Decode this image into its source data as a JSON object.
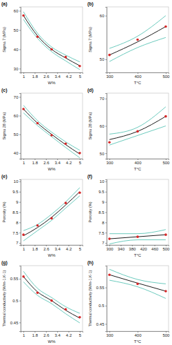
{
  "chart_data": [
    {
      "type": "line",
      "title": "(a)",
      "xlabel": "W%",
      "ylabel": "Sigma 7 (MPa)",
      "x": [
        1,
        2,
        3,
        4,
        5
      ],
      "xlim": [
        0.8,
        5.2
      ],
      "xticks": [
        1,
        1.8,
        2.6,
        3.4,
        4.2,
        5
      ],
      "ylim": [
        28,
        62
      ],
      "yticks": [
        30,
        40,
        50,
        60
      ],
      "series": [
        {
          "type": "line",
          "color": "#2bb3a0",
          "line_style": "solid",
          "values": [
            59.5,
            48.3,
            41.2,
            37,
            33.5
          ]
        },
        {
          "type": "line",
          "color": "#2bb3a0",
          "line_style": "solid",
          "values": [
            55.5,
            45.7,
            38.8,
            34,
            29.5
          ]
        },
        {
          "type": "line",
          "color": "#000000",
          "line_style": "solid",
          "values": [
            57.5,
            47,
            40,
            35.5,
            31.5
          ]
        },
        {
          "type": "scatter",
          "color": "#d62728",
          "marker": "circle",
          "values": [
            57.5,
            46.5,
            40,
            36,
            31.3
          ]
        }
      ]
    },
    {
      "type": "line",
      "title": "(b)",
      "xlabel": "T°C",
      "ylabel": "Sigma 7 (MPa)",
      "x": [
        300,
        400,
        500
      ],
      "xlim": [
        290,
        510
      ],
      "xticks": [
        300,
        400,
        500
      ],
      "ylim": [
        47,
        62
      ],
      "yticks": [
        50,
        60
      ],
      "series": [
        {
          "type": "line",
          "color": "#2bb3a0",
          "line_style": "solid",
          "values": [
            52.5,
            55.3,
            60
          ]
        },
        {
          "type": "line",
          "color": "#2bb3a0",
          "line_style": "solid",
          "values": [
            49.5,
            52.7,
            55
          ]
        },
        {
          "type": "line",
          "color": "#000000",
          "line_style": "solid",
          "values": [
            51,
            54,
            57.5
          ]
        },
        {
          "type": "scatter",
          "color": "#d62728",
          "marker": "circle",
          "values": [
            51,
            54.5,
            57.5
          ]
        }
      ]
    },
    {
      "type": "line",
      "title": "(c)",
      "xlabel": "W%",
      "ylabel": "Sigma 28 (MPa)",
      "x": [
        1,
        2,
        3,
        4,
        5
      ],
      "xlim": [
        0.8,
        5.2
      ],
      "xticks": [
        1,
        1.8,
        2.6,
        3.4,
        4.2,
        5
      ],
      "ylim": [
        37,
        72
      ],
      "yticks": [
        40,
        50,
        60,
        70
      ],
      "series": [
        {
          "type": "line",
          "color": "#2bb3a0",
          "line_style": "solid",
          "values": [
            65.5,
            57.3,
            51.2,
            46,
            41.5
          ]
        },
        {
          "type": "line",
          "color": "#2bb3a0",
          "line_style": "solid",
          "values": [
            61.5,
            54.7,
            48.8,
            43,
            37.5
          ]
        },
        {
          "type": "line",
          "color": "#000000",
          "line_style": "solid",
          "values": [
            63.5,
            56,
            50,
            44.5,
            39.5
          ]
        },
        {
          "type": "scatter",
          "color": "#d62728",
          "marker": "circle",
          "values": [
            63.5,
            56,
            49.5,
            45,
            40
          ]
        }
      ]
    },
    {
      "type": "line",
      "title": "(d)",
      "xlabel": "T°C",
      "ylabel": "Sigma 28 (MPa)",
      "x": [
        300,
        400,
        500
      ],
      "xlim": [
        290,
        510
      ],
      "xticks": [
        300,
        400,
        500
      ],
      "ylim": [
        48,
        72
      ],
      "yticks": [
        50,
        60,
        70
      ],
      "series": [
        {
          "type": "line",
          "color": "#2bb3a0",
          "line_style": "solid",
          "values": [
            57,
            59.5,
            67
          ]
        },
        {
          "type": "line",
          "color": "#2bb3a0",
          "line_style": "solid",
          "values": [
            53,
            56.5,
            60
          ]
        },
        {
          "type": "line",
          "color": "#000000",
          "line_style": "solid",
          "values": [
            55,
            58,
            63.5
          ]
        },
        {
          "type": "scatter",
          "color": "#d62728",
          "marker": "circle",
          "values": [
            54,
            58,
            63.5
          ]
        }
      ]
    },
    {
      "type": "line",
      "title": "(e)",
      "xlabel": "W%",
      "ylabel": "Porosity (%)",
      "x": [
        1,
        2,
        3,
        4,
        5
      ],
      "xlim": [
        0.8,
        5.2
      ],
      "xticks": [
        1,
        1.8,
        2.6,
        3.4,
        4.2,
        5
      ],
      "ylim": [
        6.9,
        10.1
      ],
      "yticks": [
        7,
        7.5,
        8,
        8.5,
        9,
        9.5,
        10
      ],
      "series": [
        {
          "type": "line",
          "color": "#2bb3a0",
          "line_style": "solid",
          "values": [
            7.6,
            7.9,
            8.4,
            9,
            9.7
          ]
        },
        {
          "type": "line",
          "color": "#2bb3a0",
          "line_style": "solid",
          "values": [
            7.1,
            7.6,
            8.1,
            8.7,
            9.3
          ]
        },
        {
          "type": "line",
          "color": "#000000",
          "line_style": "solid",
          "values": [
            7.35,
            7.75,
            8.25,
            8.85,
            9.5
          ]
        },
        {
          "type": "scatter",
          "color": "#d62728",
          "marker": "circle",
          "values": [
            7.4,
            7.85,
            8.2,
            8.95,
            9.45
          ]
        }
      ]
    },
    {
      "type": "line",
      "title": "(f)",
      "xlabel": "T°C",
      "ylabel": "Porosity (%)",
      "x": [
        300,
        400,
        500
      ],
      "xlim": [
        290,
        510
      ],
      "xticks": [
        300,
        340,
        380,
        420,
        460,
        500
      ],
      "ylim": [
        6.9,
        10.1
      ],
      "yticks": [
        7,
        7.5,
        8,
        8.5,
        9,
        9.5,
        10
      ],
      "series": [
        {
          "type": "line",
          "color": "#2bb3a0",
          "line_style": "solid",
          "values": [
            7.45,
            7.45,
            7.65
          ]
        },
        {
          "type": "line",
          "color": "#2bb3a0",
          "line_style": "solid",
          "values": [
            6.95,
            7.15,
            7.15
          ]
        },
        {
          "type": "line",
          "color": "#000000",
          "line_style": "solid",
          "values": [
            7.2,
            7.3,
            7.4
          ]
        },
        {
          "type": "scatter",
          "color": "#d62728",
          "marker": "circle",
          "values": [
            7.2,
            7.3,
            7.4
          ]
        }
      ]
    },
    {
      "type": "line",
      "title": "(g)",
      "xlabel": "W%",
      "ylabel": "Thermal conductivity (W/m-1.K-1)",
      "x": [
        1,
        2,
        3,
        4,
        5
      ],
      "xlim": [
        0.8,
        5.2
      ],
      "xticks": [
        1,
        1.8,
        2.6,
        3.4,
        4.2,
        5
      ],
      "ylim": [
        0.43,
        0.58
      ],
      "yticks": [
        0.45,
        0.5,
        0.55
      ],
      "series": [
        {
          "type": "line",
          "color": "#2bb3a0",
          "line_style": "solid",
          "values": [
            0.567,
            0.528,
            0.507,
            0.486,
            0.471
          ]
        },
        {
          "type": "line",
          "color": "#2bb3a0",
          "line_style": "solid",
          "values": [
            0.543,
            0.512,
            0.493,
            0.47,
            0.449
          ]
        },
        {
          "type": "line",
          "color": "#000000",
          "line_style": "solid",
          "values": [
            0.555,
            0.52,
            0.5,
            0.478,
            0.46
          ]
        },
        {
          "type": "scatter",
          "color": "#d62728",
          "marker": "circle",
          "values": [
            0.555,
            0.518,
            0.5,
            0.48,
            0.462
          ]
        }
      ]
    },
    {
      "type": "line",
      "title": "(h)",
      "xlabel": "T°C",
      "ylabel": "Thermal conductivity (W/m-1.K-1)",
      "x": [
        300,
        400,
        500
      ],
      "xlim": [
        290,
        510
      ],
      "xticks": [
        300,
        400,
        500
      ],
      "ylim": [
        0.43,
        0.61
      ],
      "yticks": [
        0.45,
        0.5,
        0.55
      ],
      "series": [
        {
          "type": "line",
          "color": "#2bb3a0",
          "line_style": "solid",
          "values": [
            0.6,
            0.572,
            0.56
          ]
        },
        {
          "type": "line",
          "color": "#2bb3a0",
          "line_style": "solid",
          "values": [
            0.57,
            0.552,
            0.52
          ]
        },
        {
          "type": "line",
          "color": "#000000",
          "line_style": "solid",
          "values": [
            0.585,
            0.562,
            0.54
          ]
        },
        {
          "type": "scatter",
          "color": "#d62728",
          "marker": "circle",
          "values": [
            0.585,
            0.56,
            0.54
          ]
        }
      ]
    }
  ]
}
